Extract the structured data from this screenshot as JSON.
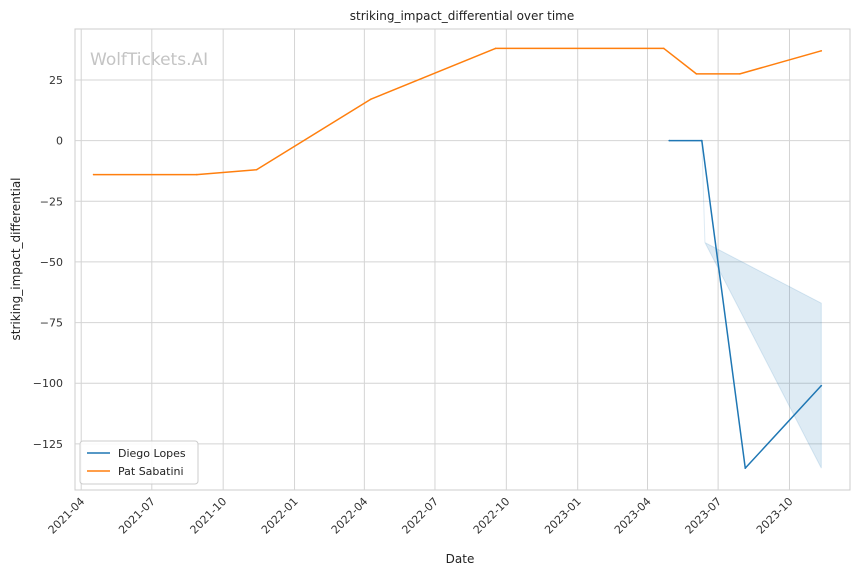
{
  "chart_data": {
    "type": "line",
    "title": "striking_impact_differential over time",
    "xlabel": "Date",
    "ylabel": "striking_impact_differential",
    "watermark": "WolfTickets.AI",
    "x_ticks": [
      "2021-04",
      "2021-07",
      "2021-10",
      "2022-01",
      "2022-04",
      "2022-07",
      "2022-10",
      "2023-01",
      "2023-04",
      "2023-07",
      "2023-10"
    ],
    "y_ticks": [
      25,
      0,
      -25,
      -50,
      -75,
      -100,
      -125
    ],
    "y_tick_labels": [
      "25",
      "0",
      "−25",
      "−50",
      "−75",
      "−100",
      "−125"
    ],
    "xlim": [
      "2021-03-24",
      "2023-12-18"
    ],
    "ylim": [
      -144,
      46
    ],
    "grid": true,
    "legend_position": "lower-left",
    "series": [
      {
        "name": "Diego Lopes",
        "color": "#1f77b4",
        "points": [
          {
            "x": "2023-04-29",
            "y": 0
          },
          {
            "x": "2023-06-10",
            "y": 0
          },
          {
            "x": "2023-08-05",
            "y": -135
          },
          {
            "x": "2023-11-11",
            "y": -101
          }
        ],
        "band": [
          {
            "x": "2023-06-10",
            "low": 0,
            "high": 0
          },
          {
            "x": "2023-06-14",
            "low": -42,
            "high": -42
          },
          {
            "x": "2023-11-11",
            "low": -135,
            "high": -67
          }
        ]
      },
      {
        "name": "Pat Sabatini",
        "color": "#ff7f0e",
        "points": [
          {
            "x": "2021-04-17",
            "y": -14
          },
          {
            "x": "2021-08-28",
            "y": -14
          },
          {
            "x": "2021-11-13",
            "y": -12
          },
          {
            "x": "2022-04-09",
            "y": 17
          },
          {
            "x": "2022-09-17",
            "y": 38
          },
          {
            "x": "2023-04-22",
            "y": 38
          },
          {
            "x": "2023-06-03",
            "y": 27.5
          },
          {
            "x": "2023-07-29",
            "y": 27.5
          },
          {
            "x": "2023-11-11",
            "y": 37
          }
        ]
      }
    ]
  }
}
